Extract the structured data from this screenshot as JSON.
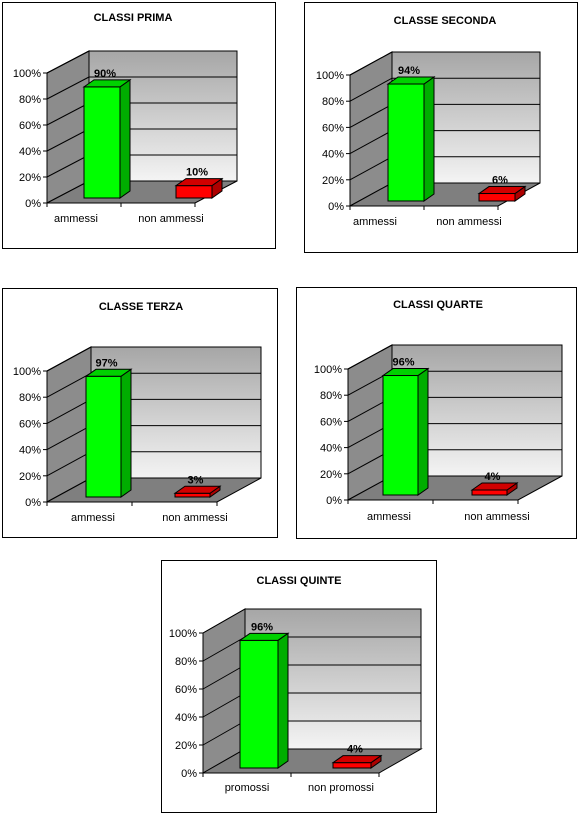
{
  "chart_data": [
    {
      "type": "bar",
      "title": "CLASSI PRIMA",
      "categories": [
        "ammessi",
        "non ammessi"
      ],
      "values": [
        90,
        10
      ],
      "value_labels": [
        "90%",
        "10%"
      ],
      "ylim": [
        0,
        100
      ],
      "yticks": [
        "0%",
        "20%",
        "40%",
        "60%",
        "80%",
        "100%"
      ],
      "colors": [
        "#00ff00",
        "#ff0000"
      ],
      "grid": true
    },
    {
      "type": "bar",
      "title": "CLASSE SECONDA",
      "categories": [
        "ammessi",
        "non ammessi"
      ],
      "values": [
        94,
        6
      ],
      "value_labels": [
        "94%",
        "6%"
      ],
      "ylim": [
        0,
        100
      ],
      "yticks": [
        "0%",
        "20%",
        "40%",
        "60%",
        "80%",
        "100%"
      ],
      "colors": [
        "#00ff00",
        "#ff0000"
      ],
      "grid": true
    },
    {
      "type": "bar",
      "title": "CLASSE TERZA",
      "categories": [
        "ammessi",
        "non ammessi"
      ],
      "values": [
        97,
        3
      ],
      "value_labels": [
        "97%",
        "3%"
      ],
      "ylim": [
        0,
        100
      ],
      "yticks": [
        "0%",
        "20%",
        "40%",
        "60%",
        "80%",
        "100%"
      ],
      "colors": [
        "#00ff00",
        "#ff0000"
      ],
      "grid": true
    },
    {
      "type": "bar",
      "title": "CLASSI QUARTE",
      "categories": [
        "ammessi",
        "non ammessi"
      ],
      "values": [
        96,
        4
      ],
      "value_labels": [
        "96%",
        "4%"
      ],
      "ylim": [
        0,
        100
      ],
      "yticks": [
        "0%",
        "20%",
        "40%",
        "60%",
        "80%",
        "100%"
      ],
      "colors": [
        "#00ff00",
        "#ff0000"
      ],
      "grid": true
    },
    {
      "type": "bar",
      "title": "CLASSI QUINTE",
      "categories": [
        "promossi",
        "non promossi"
      ],
      "values": [
        96,
        4
      ],
      "value_labels": [
        "96%",
        "4%"
      ],
      "ylim": [
        0,
        100
      ],
      "yticks": [
        "0%",
        "20%",
        "40%",
        "60%",
        "80%",
        "100%"
      ],
      "colors": [
        "#00ff00",
        "#ff0000"
      ],
      "grid": true
    }
  ]
}
